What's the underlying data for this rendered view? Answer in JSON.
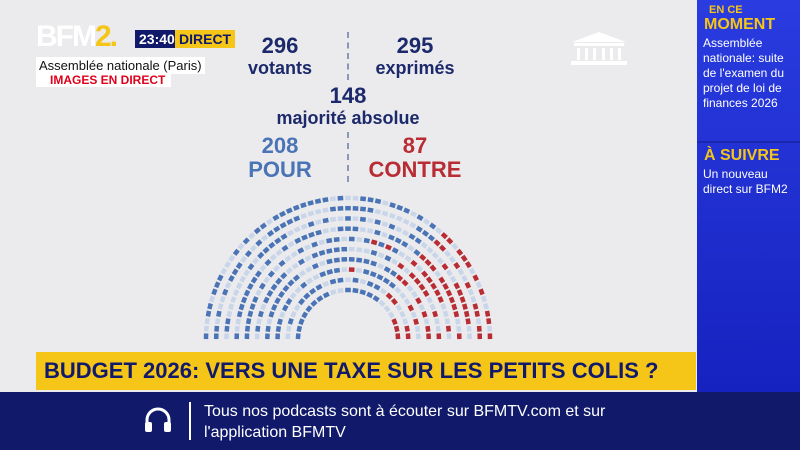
{
  "header": {
    "logo_text": "BFM",
    "logo_num": "2.",
    "time": "23:40",
    "live": "DIRECT",
    "location": "Assemblée nationale (Paris)",
    "images": "IMAGES EN DIRECT"
  },
  "vote": {
    "voters": "296",
    "voters_label": "votants",
    "expressed": "295",
    "expressed_label": "exprimés",
    "majority": "148",
    "majority_label": "majorité absolue",
    "for": "208",
    "for_label": "POUR",
    "against": "87",
    "against_label": "CONTRE"
  },
  "colors": {
    "for": "#4a74b5",
    "against": "#b82d33",
    "brand": "#111a6a",
    "accent": "#f5c518"
  },
  "ticker": "BUDGET 2026: VERS UNE TAXE SUR LES PETITS COLIS ?",
  "side": {
    "now_small": "EN CE",
    "now_big": "MOMENT",
    "now_text": "Assemblée nationale: suite de l'examen du projet de loi de finances 2026",
    "next": "À SUIVRE",
    "next_text": "Un nouveau direct sur BFM2"
  },
  "bottom": {
    "text": "Tous nos podcasts sont à écouter sur BFMTV.com et sur l'application BFMTV",
    "icon": "headphones-icon"
  }
}
